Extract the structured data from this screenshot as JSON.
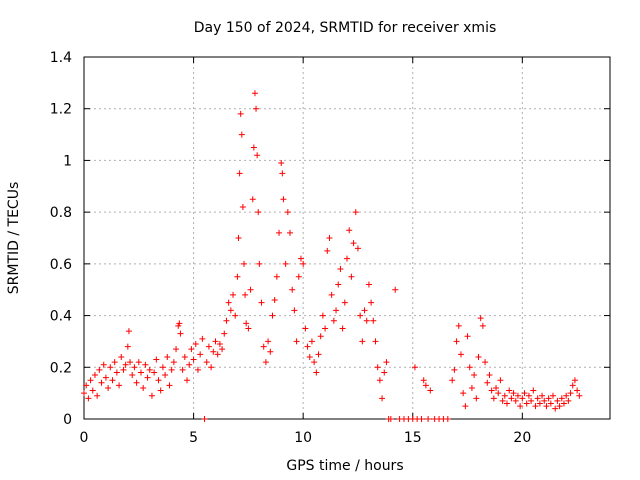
{
  "chart_data": {
    "type": "scatter",
    "title": "Day 150 of 2024, SRMTID for receiver xmis",
    "xlabel": "GPS time / hours",
    "ylabel": "SRMTID / TECUs",
    "xlim": [
      0,
      24
    ],
    "ylim": [
      0,
      1.4
    ],
    "x_ticks": [
      0,
      5,
      10,
      15,
      20
    ],
    "y_ticks": [
      0,
      0.2,
      0.4,
      0.6,
      0.8,
      1.0,
      1.2,
      1.4
    ],
    "x_tick_labels": [
      "0",
      "5",
      "10",
      "15",
      "20"
    ],
    "y_tick_labels": [
      "0",
      "0.2",
      "0.4",
      "0.6",
      "0.8",
      "1",
      "1.2",
      "1.4"
    ],
    "grid": true,
    "marker": "plus",
    "series": [
      {
        "name": "SRMTID",
        "color": "#ff0000",
        "points": [
          [
            0.0,
            0.1
          ],
          [
            0.1,
            0.13
          ],
          [
            0.2,
            0.08
          ],
          [
            0.3,
            0.15
          ],
          [
            0.4,
            0.11
          ],
          [
            0.5,
            0.17
          ],
          [
            0.6,
            0.09
          ],
          [
            0.7,
            0.19
          ],
          [
            0.8,
            0.14
          ],
          [
            0.9,
            0.21
          ],
          [
            1.0,
            0.16
          ],
          [
            1.1,
            0.12
          ],
          [
            1.2,
            0.2
          ],
          [
            1.3,
            0.15
          ],
          [
            1.4,
            0.22
          ],
          [
            1.5,
            0.18
          ],
          [
            1.6,
            0.13
          ],
          [
            1.7,
            0.24
          ],
          [
            1.8,
            0.19
          ],
          [
            1.9,
            0.21
          ],
          [
            2.0,
            0.28
          ],
          [
            2.05,
            0.34
          ],
          [
            2.1,
            0.22
          ],
          [
            2.2,
            0.17
          ],
          [
            2.3,
            0.2
          ],
          [
            2.4,
            0.14
          ],
          [
            2.5,
            0.22
          ],
          [
            2.6,
            0.18
          ],
          [
            2.7,
            0.12
          ],
          [
            2.8,
            0.21
          ],
          [
            2.9,
            0.16
          ],
          [
            3.0,
            0.19
          ],
          [
            3.1,
            0.09
          ],
          [
            3.2,
            0.18
          ],
          [
            3.3,
            0.23
          ],
          [
            3.4,
            0.15
          ],
          [
            3.5,
            0.11
          ],
          [
            3.6,
            0.2
          ],
          [
            3.7,
            0.17
          ],
          [
            3.8,
            0.24
          ],
          [
            3.9,
            0.13
          ],
          [
            4.0,
            0.19
          ],
          [
            4.1,
            0.22
          ],
          [
            4.2,
            0.27
          ],
          [
            4.3,
            0.36
          ],
          [
            4.35,
            0.37
          ],
          [
            4.4,
            0.33
          ],
          [
            4.5,
            0.19
          ],
          [
            4.6,
            0.24
          ],
          [
            4.7,
            0.15
          ],
          [
            4.8,
            0.21
          ],
          [
            4.9,
            0.27
          ],
          [
            5.0,
            0.23
          ],
          [
            5.1,
            0.29
          ],
          [
            5.2,
            0.19
          ],
          [
            5.3,
            0.25
          ],
          [
            5.4,
            0.31
          ],
          [
            5.5,
            0.0
          ],
          [
            5.6,
            0.22
          ],
          [
            5.7,
            0.28
          ],
          [
            5.8,
            0.2
          ],
          [
            5.9,
            0.26
          ],
          [
            6.0,
            0.3
          ],
          [
            6.1,
            0.25
          ],
          [
            6.2,
            0.29
          ],
          [
            6.3,
            0.27
          ],
          [
            6.4,
            0.33
          ],
          [
            6.5,
            0.38
          ],
          [
            6.6,
            0.45
          ],
          [
            6.7,
            0.42
          ],
          [
            6.8,
            0.48
          ],
          [
            6.9,
            0.4
          ],
          [
            7.0,
            0.55
          ],
          [
            7.05,
            0.7
          ],
          [
            7.1,
            0.95
          ],
          [
            7.15,
            1.18
          ],
          [
            7.2,
            1.1
          ],
          [
            7.25,
            0.82
          ],
          [
            7.3,
            0.6
          ],
          [
            7.35,
            0.48
          ],
          [
            7.4,
            0.37
          ],
          [
            7.5,
            0.35
          ],
          [
            7.6,
            0.5
          ],
          [
            7.7,
            0.85
          ],
          [
            7.75,
            1.05
          ],
          [
            7.8,
            1.26
          ],
          [
            7.85,
            1.2
          ],
          [
            7.9,
            1.02
          ],
          [
            7.95,
            0.8
          ],
          [
            8.0,
            0.6
          ],
          [
            8.1,
            0.45
          ],
          [
            8.2,
            0.28
          ],
          [
            8.3,
            0.22
          ],
          [
            8.4,
            0.3
          ],
          [
            8.5,
            0.26
          ],
          [
            8.6,
            0.4
          ],
          [
            8.7,
            0.46
          ],
          [
            8.8,
            0.55
          ],
          [
            8.9,
            0.72
          ],
          [
            9.0,
            0.99
          ],
          [
            9.05,
            0.95
          ],
          [
            9.1,
            0.85
          ],
          [
            9.2,
            0.6
          ],
          [
            9.3,
            0.8
          ],
          [
            9.4,
            0.72
          ],
          [
            9.5,
            0.5
          ],
          [
            9.6,
            0.42
          ],
          [
            9.7,
            0.3
          ],
          [
            9.8,
            0.55
          ],
          [
            9.9,
            0.62
          ],
          [
            10.0,
            0.6
          ],
          [
            10.1,
            0.35
          ],
          [
            10.2,
            0.28
          ],
          [
            10.3,
            0.24
          ],
          [
            10.4,
            0.3
          ],
          [
            10.5,
            0.22
          ],
          [
            10.6,
            0.18
          ],
          [
            10.7,
            0.25
          ],
          [
            10.8,
            0.32
          ],
          [
            10.9,
            0.4
          ],
          [
            11.0,
            0.35
          ],
          [
            11.1,
            0.65
          ],
          [
            11.2,
            0.7
          ],
          [
            11.3,
            0.48
          ],
          [
            11.4,
            0.38
          ],
          [
            11.5,
            0.42
          ],
          [
            11.6,
            0.52
          ],
          [
            11.7,
            0.58
          ],
          [
            11.8,
            0.35
          ],
          [
            11.9,
            0.45
          ],
          [
            12.0,
            0.62
          ],
          [
            12.1,
            0.73
          ],
          [
            12.2,
            0.55
          ],
          [
            12.3,
            0.68
          ],
          [
            12.4,
            0.8
          ],
          [
            12.5,
            0.66
          ],
          [
            12.6,
            0.4
          ],
          [
            12.7,
            0.3
          ],
          [
            12.8,
            0.42
          ],
          [
            12.9,
            0.38
          ],
          [
            13.0,
            0.52
          ],
          [
            13.1,
            0.45
          ],
          [
            13.2,
            0.38
          ],
          [
            13.3,
            0.3
          ],
          [
            13.4,
            0.2
          ],
          [
            13.5,
            0.15
          ],
          [
            13.6,
            0.08
          ],
          [
            13.7,
            0.18
          ],
          [
            13.8,
            0.22
          ],
          [
            13.9,
            0.0
          ],
          [
            14.0,
            0.0
          ],
          [
            14.2,
            0.5
          ],
          [
            14.4,
            0.0
          ],
          [
            14.6,
            0.0
          ],
          [
            14.8,
            0.0
          ],
          [
            15.0,
            0.0
          ],
          [
            15.1,
            0.2
          ],
          [
            15.2,
            0.0
          ],
          [
            15.4,
            0.0
          ],
          [
            15.5,
            0.15
          ],
          [
            15.6,
            0.13
          ],
          [
            15.7,
            0.0
          ],
          [
            15.8,
            0.11
          ],
          [
            16.0,
            0.0
          ],
          [
            16.2,
            0.0
          ],
          [
            16.4,
            0.0
          ],
          [
            16.6,
            0.0
          ],
          [
            16.8,
            0.15
          ],
          [
            16.9,
            0.19
          ],
          [
            17.0,
            0.3
          ],
          [
            17.1,
            0.36
          ],
          [
            17.2,
            0.25
          ],
          [
            17.3,
            0.1
          ],
          [
            17.4,
            0.05
          ],
          [
            17.5,
            0.32
          ],
          [
            17.6,
            0.2
          ],
          [
            17.7,
            0.12
          ],
          [
            17.8,
            0.17
          ],
          [
            17.9,
            0.08
          ],
          [
            18.0,
            0.24
          ],
          [
            18.1,
            0.39
          ],
          [
            18.2,
            0.36
          ],
          [
            18.3,
            0.22
          ],
          [
            18.4,
            0.14
          ],
          [
            18.5,
            0.17
          ],
          [
            18.6,
            0.11
          ],
          [
            18.7,
            0.08
          ],
          [
            18.8,
            0.12
          ],
          [
            18.9,
            0.1
          ],
          [
            19.0,
            0.15
          ],
          [
            19.1,
            0.07
          ],
          [
            19.2,
            0.09
          ],
          [
            19.3,
            0.06
          ],
          [
            19.4,
            0.11
          ],
          [
            19.5,
            0.08
          ],
          [
            19.6,
            0.1
          ],
          [
            19.7,
            0.07
          ],
          [
            19.8,
            0.09
          ],
          [
            19.9,
            0.05
          ],
          [
            20.0,
            0.08
          ],
          [
            20.1,
            0.1
          ],
          [
            20.2,
            0.06
          ],
          [
            20.3,
            0.09
          ],
          [
            20.4,
            0.07
          ],
          [
            20.5,
            0.11
          ],
          [
            20.6,
            0.05
          ],
          [
            20.7,
            0.08
          ],
          [
            20.8,
            0.06
          ],
          [
            20.9,
            0.09
          ],
          [
            21.0,
            0.07
          ],
          [
            21.1,
            0.05
          ],
          [
            21.2,
            0.08
          ],
          [
            21.3,
            0.06
          ],
          [
            21.4,
            0.09
          ],
          [
            21.5,
            0.04
          ],
          [
            21.6,
            0.07
          ],
          [
            21.7,
            0.05
          ],
          [
            21.8,
            0.08
          ],
          [
            21.9,
            0.06
          ],
          [
            22.0,
            0.09
          ],
          [
            22.1,
            0.07
          ],
          [
            22.2,
            0.1
          ],
          [
            22.3,
            0.13
          ],
          [
            22.4,
            0.15
          ],
          [
            22.5,
            0.11
          ],
          [
            22.6,
            0.09
          ]
        ]
      }
    ]
  }
}
